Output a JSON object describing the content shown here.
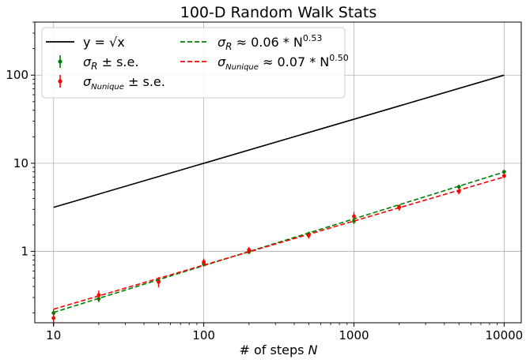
{
  "chart_data": {
    "type": "line",
    "title": "100-D Random Walk Stats",
    "xlabel": "# of steps N",
    "xlabel_main": "# of steps ",
    "xlabel_var": "N",
    "xscale": "log",
    "yscale": "log",
    "xlim": [
      7.5,
      13000
    ],
    "ylim": [
      0.155,
      400
    ],
    "grid": true,
    "legend_position": "top-left",
    "x_ticks": [
      10,
      100,
      1000,
      10000
    ],
    "x_tick_labels": [
      "10",
      "100",
      "1000",
      "10000"
    ],
    "y_ticks": [
      1,
      10,
      100
    ],
    "y_tick_labels": [
      "1",
      "10",
      "100"
    ],
    "series": [
      {
        "name": "y = √x",
        "style": "line",
        "color": "#000000",
        "x": [
          10,
          10000
        ],
        "y": [
          3.16,
          100
        ]
      },
      {
        "name": "σ_R ± s.e.",
        "style": "errorbar",
        "color": "#008000",
        "x": [
          10,
          20,
          50,
          100,
          200,
          500,
          1000,
          2000,
          5000,
          10000
        ],
        "y": [
          0.2,
          0.29,
          0.46,
          0.72,
          0.99,
          1.58,
          2.2,
          3.2,
          5.4,
          8.0
        ],
        "err": [
          0.02,
          0.025,
          0.04,
          0.05,
          0.06,
          0.1,
          0.15,
          0.2,
          0.3,
          0.4
        ]
      },
      {
        "name": "σ_Nunique ± s.e.",
        "style": "errorbar",
        "color": "#ff0000",
        "x": [
          10,
          20,
          50,
          100,
          200,
          500,
          1000,
          2000,
          5000,
          10000
        ],
        "y": [
          0.175,
          0.32,
          0.45,
          0.76,
          1.04,
          1.52,
          2.5,
          3.15,
          4.8,
          7.2
        ],
        "err": [
          0.03,
          0.04,
          0.06,
          0.07,
          0.08,
          0.12,
          0.3,
          0.25,
          0.35,
          0.4
        ]
      },
      {
        "name": "σ_R ≈ 0.06 * N^0.53",
        "style": "dashed",
        "color": "#008000",
        "x": [
          10,
          10000
        ],
        "y": [
          0.203,
          7.95
        ]
      },
      {
        "name": "σ_Nunique ≈ 0.07 * N^0.50",
        "style": "dashed",
        "color": "#ff0000",
        "x": [
          10,
          10000
        ],
        "y": [
          0.221,
          7.0
        ]
      }
    ],
    "legend": [
      {
        "main": "y = √x",
        "color": "#000000",
        "kind": "line"
      },
      {
        "main": "σ",
        "sub": "R",
        "rest": " ± s.e.",
        "color": "#008000",
        "kind": "errorbar"
      },
      {
        "main": "σ",
        "sub": "Nunique",
        "rest": " ± s.e.",
        "color": "#ff0000",
        "kind": "errorbar"
      },
      {
        "main": "σ",
        "sub": "R",
        "rest": " ≈ 0.06 * N",
        "sup": "0.53",
        "color": "#008000",
        "kind": "dashed"
      },
      {
        "main": "σ",
        "sub": "Nunique",
        "rest": " ≈ 0.07 * N",
        "sup": "0.50",
        "color": "#ff0000",
        "kind": "dashed"
      }
    ]
  }
}
